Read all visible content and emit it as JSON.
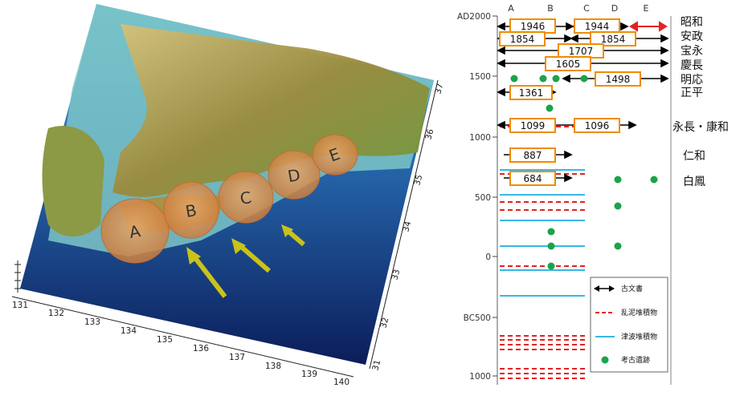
{
  "map": {
    "zones": [
      "A",
      "B",
      "C",
      "D",
      "E"
    ],
    "lon_ticks": [
      "131",
      "132",
      "133",
      "134",
      "135",
      "136",
      "137",
      "138",
      "139",
      "140"
    ],
    "lat_ticks": [
      "31",
      "32",
      "33",
      "34",
      "35",
      "36",
      "37"
    ]
  },
  "timeline": {
    "columns": [
      "A",
      "B",
      "C",
      "D",
      "E"
    ],
    "y_labels": [
      "AD2000",
      "1500",
      "1000",
      "500",
      "0",
      "BC500",
      "1000"
    ],
    "events": [
      {
        "label": "1946",
        "era": "昭和"
      },
      {
        "label": "1944",
        "era": "昭和"
      },
      {
        "label": "1854",
        "era": "安政"
      },
      {
        "label": "1854",
        "era": "安政"
      },
      {
        "label": "1707",
        "era": "宝永"
      },
      {
        "label": "1605",
        "era": "慶長"
      },
      {
        "label": "1498",
        "era": "明応"
      },
      {
        "label": "1361",
        "era": "正平"
      },
      {
        "label": "1099",
        "era": "永長・康和"
      },
      {
        "label": "1096",
        "era": "永長・康和"
      },
      {
        "label": "887",
        "era": "仁和"
      },
      {
        "label": "684",
        "era": "白鳳"
      }
    ],
    "era_labels": [
      "昭和",
      "安政",
      "宝永",
      "慶長",
      "明応",
      "正平",
      "永長・康和",
      "仁和",
      "白鳳"
    ],
    "legend": {
      "document": "古文書",
      "turbidite": "乱泥堆積物",
      "tsunami": "津波堆積物",
      "site": "考古遺跡"
    },
    "colors": {
      "box_border": "#f08c00",
      "arrow": "#000000",
      "arrow_recent": "#e32222",
      "turbidite": "#e32222",
      "tsunami": "#37b7e6",
      "site": "#1aa34a"
    }
  }
}
